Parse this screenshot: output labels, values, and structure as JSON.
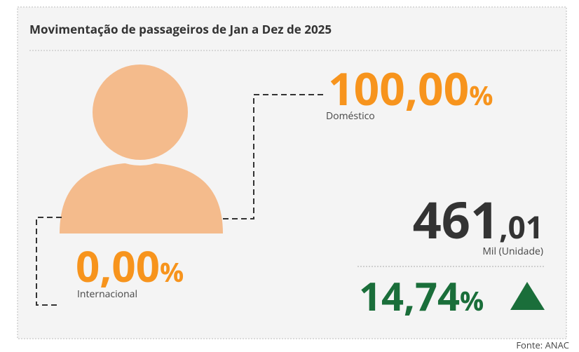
{
  "title": "Movimentação de passageiros de Jan a Dez de 2025",
  "domestic": {
    "value": "100,00",
    "unit": "%",
    "label": "Doméstico"
  },
  "international": {
    "value": "0,00",
    "unit": "%",
    "label": "Internacional"
  },
  "total": {
    "integer": "461",
    "decimal": ",01",
    "label": "Mil (Unidade)"
  },
  "change": {
    "value": "14,74",
    "unit": "%"
  },
  "source": "Fonte: ANAC"
}
